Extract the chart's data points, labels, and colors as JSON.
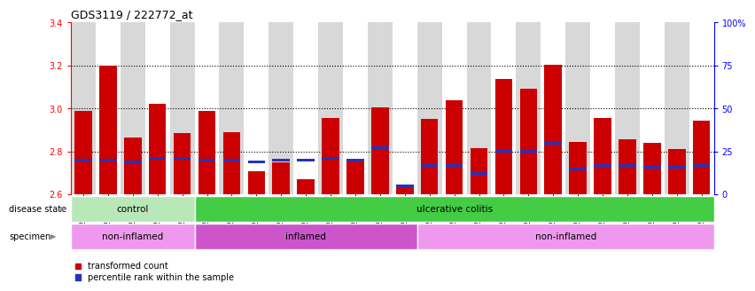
{
  "title": "GDS3119 / 222772_at",
  "samples": [
    "GSM240023",
    "GSM240024",
    "GSM240025",
    "GSM240026",
    "GSM240027",
    "GSM239617",
    "GSM239618",
    "GSM239714",
    "GSM239716",
    "GSM239717",
    "GSM239718",
    "GSM239719",
    "GSM239720",
    "GSM239723",
    "GSM239725",
    "GSM239726",
    "GSM239727",
    "GSM239729",
    "GSM239730",
    "GSM239731",
    "GSM239732",
    "GSM240022",
    "GSM240028",
    "GSM240029",
    "GSM240030",
    "GSM240031"
  ],
  "transformed_count": [
    2.99,
    3.2,
    2.865,
    3.02,
    2.885,
    2.99,
    2.89,
    2.71,
    2.75,
    2.67,
    2.955,
    2.765,
    3.005,
    2.635,
    2.95,
    3.04,
    2.815,
    3.135,
    3.09,
    3.205,
    2.845,
    2.955,
    2.855,
    2.84,
    2.81,
    2.945
  ],
  "percentile_rank": [
    20,
    20,
    19,
    21,
    21,
    20,
    20,
    19,
    20,
    20,
    21,
    20,
    27,
    5,
    17,
    17,
    12,
    25,
    25,
    30,
    15,
    17,
    17,
    16,
    16,
    17
  ],
  "ymin": 2.6,
  "ymax": 3.4,
  "yticks": [
    2.6,
    2.8,
    3.0,
    3.2,
    3.4
  ],
  "right_yticks": [
    0,
    25,
    50,
    75,
    100
  ],
  "right_ytick_labels": [
    "0",
    "25",
    "50",
    "75",
    "100%"
  ],
  "bar_color": "#cc0000",
  "percentile_color": "#2233bb",
  "plot_bg": "#ffffff",
  "col_bg_odd": "#d8d8d8",
  "col_bg_even": "#ffffff",
  "disease_state_groups": [
    {
      "label": "control",
      "start": 0,
      "end": 5,
      "color": "#b8e8b8"
    },
    {
      "label": "ulcerative colitis",
      "start": 5,
      "end": 26,
      "color": "#44cc44"
    }
  ],
  "specimen_groups": [
    {
      "label": "non-inflamed",
      "start": 0,
      "end": 5,
      "color": "#ee99ee"
    },
    {
      "label": "inflamed",
      "start": 5,
      "end": 14,
      "color": "#cc55cc"
    },
    {
      "label": "non-inflamed",
      "start": 14,
      "end": 26,
      "color": "#ee99ee"
    }
  ],
  "legend_items": [
    {
      "label": "transformed count",
      "color": "#cc0000"
    },
    {
      "label": "percentile rank within the sample",
      "color": "#2233bb"
    }
  ]
}
